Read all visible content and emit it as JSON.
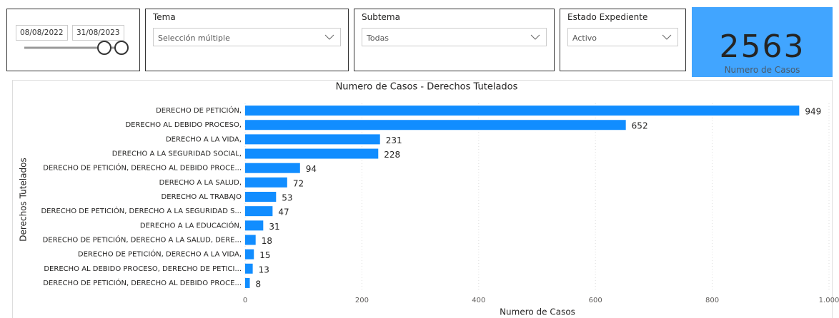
{
  "filters": {
    "date": {
      "start": "08/08/2022",
      "end": "31/08/2023"
    },
    "tema": {
      "title": "Tema",
      "value": "Selección múltiple"
    },
    "subtema": {
      "title": "Subtema",
      "value": "Todas"
    },
    "estado": {
      "title": "Estado Expediente",
      "value": "Activo"
    }
  },
  "kpi": {
    "value": 2563,
    "label": "Numero de Casos"
  },
  "chart_data": {
    "type": "barh",
    "title": "Numero de Casos - Derechos Tutelados",
    "x_label": "Numero de Casos",
    "y_label": "Derechos Tutelados",
    "categories": [
      "DERECHO DE PETICIÓN,",
      "DERECHO AL DEBIDO PROCESO,",
      "DERECHO A LA VIDA,",
      "DERECHO A LA SEGURIDAD SOCIAL,",
      "DERECHO DE PETICIÓN, DERECHO AL DEBIDO PROCE...",
      "DERECHO A LA SALUD,",
      "DERECHO AL TRABAJO",
      "DERECHO DE PETICIÓN, DERECHO A LA SEGURIDAD S...",
      "DERECHO A LA EDUCACIÓN,",
      "DERECHO DE PETICIÓN, DERECHO A LA SALUD, DERE...",
      "DERECHO DE PETICIÓN, DERECHO A LA VIDA,",
      "DERECHO AL DEBIDO PROCESO, DERECHO DE PETICI...",
      "DERECHO DE PETICIÓN, DERECHO AL DEBIDO PROCE..."
    ],
    "values": [
      949,
      652,
      231,
      228,
      94,
      72,
      53,
      47,
      31,
      18,
      15,
      13,
      8
    ],
    "color": "#118dff",
    "xlim": [
      0,
      1000
    ],
    "xticks": [
      0,
      200,
      400,
      600,
      800,
      {
        "value": 1000,
        "label": "1.000"
      }
    ],
    "grid": true
  }
}
